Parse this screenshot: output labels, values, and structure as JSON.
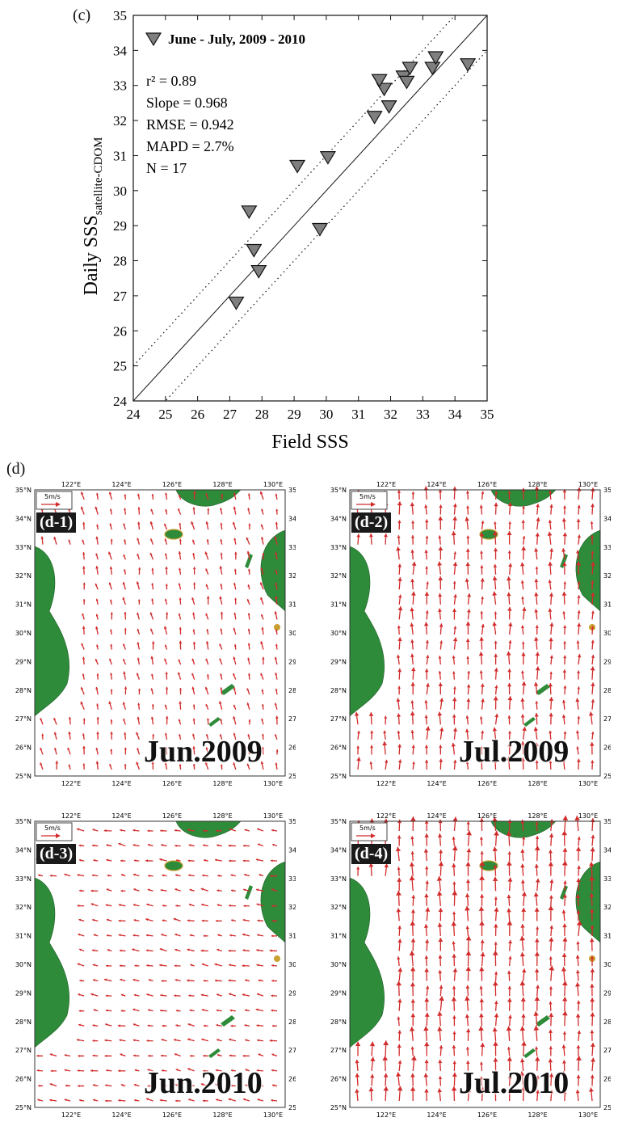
{
  "panel_c_label": "(c)",
  "panel_d_label": "(d)",
  "chart_data": {
    "type": "scatter",
    "xlabel": "Field SSS",
    "ylabel": "Daily SSS",
    "ylabel_subscript": "satellite-CDOM",
    "xlim": [
      24,
      35
    ],
    "ylim": [
      24,
      35
    ],
    "x_ticks": [
      "24",
      "25",
      "26",
      "27",
      "28",
      "29",
      "30",
      "31",
      "32",
      "33",
      "34",
      "35"
    ],
    "y_ticks": [
      "24",
      "25",
      "26",
      "27",
      "28",
      "29",
      "30",
      "31",
      "32",
      "33",
      "34",
      "35"
    ],
    "legend": "June - July, 2009 - 2010",
    "stats": {
      "r2": "r² = 0.89",
      "slope": "Slope = 0.968",
      "rmse": "RMSE = 0.942",
      "mapd": "MAPD = 2.7%",
      "n": "N = 17"
    },
    "one_to_one_line": [
      [
        24,
        24
      ],
      [
        35,
        35
      ]
    ],
    "error_lines_offset": 1.0,
    "marker_color": "#7f7f7f",
    "points": [
      {
        "x": 27.2,
        "y": 26.8
      },
      {
        "x": 27.9,
        "y": 27.7
      },
      {
        "x": 27.75,
        "y": 28.3
      },
      {
        "x": 27.6,
        "y": 29.4
      },
      {
        "x": 29.1,
        "y": 30.7
      },
      {
        "x": 29.8,
        "y": 28.9
      },
      {
        "x": 30.05,
        "y": 30.95
      },
      {
        "x": 31.5,
        "y": 32.1
      },
      {
        "x": 31.95,
        "y": 32.4
      },
      {
        "x": 31.8,
        "y": 32.9
      },
      {
        "x": 31.65,
        "y": 33.15
      },
      {
        "x": 32.4,
        "y": 33.25
      },
      {
        "x": 32.5,
        "y": 33.1
      },
      {
        "x": 32.6,
        "y": 33.5
      },
      {
        "x": 33.3,
        "y": 33.5
      },
      {
        "x": 33.4,
        "y": 33.8
      },
      {
        "x": 34.4,
        "y": 33.6
      }
    ]
  },
  "maps": {
    "lon_labels": [
      "122°E",
      "124°E",
      "126°E",
      "128°E",
      "130°E"
    ],
    "lat_labels": [
      "35°N",
      "34°N",
      "33°N",
      "32°N",
      "31°N",
      "30°N",
      "29°N",
      "28°N",
      "27°N",
      "26°N",
      "25°N"
    ],
    "scale_label": "5m/s",
    "arrow_color": "#d22b2b",
    "land_color": "#2e8b3a",
    "panels": [
      {
        "tag": "(d-1)",
        "month": "Jun.2009"
      },
      {
        "tag": "(d-2)",
        "month": "Jul.2009"
      },
      {
        "tag": "(d-3)",
        "month": "Jun.2010"
      },
      {
        "tag": "(d-4)",
        "month": "Jul.2010"
      }
    ]
  }
}
